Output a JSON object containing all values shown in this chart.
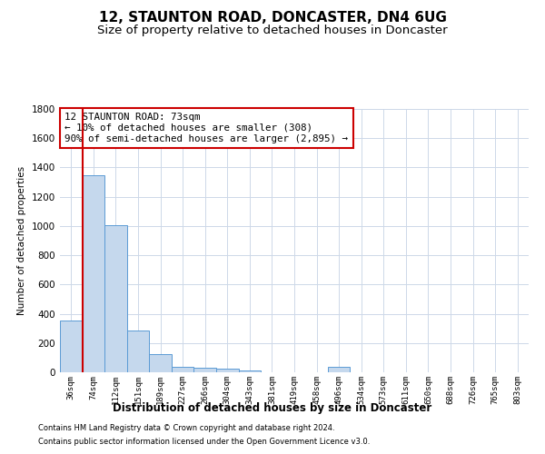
{
  "title": "12, STAUNTON ROAD, DONCASTER, DN4 6UG",
  "subtitle": "Size of property relative to detached houses in Doncaster",
  "xlabel": "Distribution of detached houses by size in Doncaster",
  "ylabel": "Number of detached properties",
  "footer_line1": "Contains HM Land Registry data © Crown copyright and database right 2024.",
  "footer_line2": "Contains public sector information licensed under the Open Government Licence v3.0.",
  "bin_labels": [
    "36sqm",
    "74sqm",
    "112sqm",
    "151sqm",
    "189sqm",
    "227sqm",
    "266sqm",
    "304sqm",
    "343sqm",
    "381sqm",
    "419sqm",
    "458sqm",
    "496sqm",
    "534sqm",
    "573sqm",
    "611sqm",
    "650sqm",
    "688sqm",
    "726sqm",
    "765sqm",
    "803sqm"
  ],
  "bar_values": [
    355,
    1350,
    1005,
    285,
    125,
    38,
    32,
    22,
    14,
    0,
    0,
    0,
    38,
    0,
    0,
    0,
    0,
    0,
    0,
    0,
    0
  ],
  "bar_color": "#c5d8ed",
  "bar_edge_color": "#5b9bd5",
  "ylim": [
    0,
    1800
  ],
  "yticks": [
    0,
    200,
    400,
    600,
    800,
    1000,
    1200,
    1400,
    1600,
    1800
  ],
  "property_bin_index": 1,
  "red_line_color": "#cc0000",
  "annotation_title": "12 STAUNTON ROAD: 73sqm",
  "annotation_line2": "← 10% of detached houses are smaller (308)",
  "annotation_line3": "90% of semi-detached houses are larger (2,895) →",
  "annotation_box_color": "#ffffff",
  "annotation_box_edge": "#cc0000",
  "background_color": "#ffffff",
  "grid_color": "#cdd8e8",
  "title_fontsize": 11,
  "subtitle_fontsize": 9.5
}
